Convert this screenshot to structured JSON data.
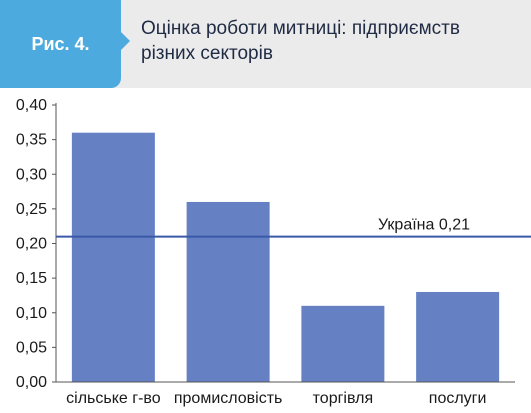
{
  "header": {
    "figure_label": "Рис. 4.",
    "title": "Оцінка роботи митниці: підприємств\nрізних секторів"
  },
  "colors": {
    "badge": "#4daadf",
    "header_bg": "#ebebeb",
    "bar": "#6680c4",
    "reference_line": "#3a5aa8"
  },
  "chart_data": {
    "type": "bar",
    "categories": [
      "сільське г-во",
      "промисловість",
      "торгівля",
      "послуги"
    ],
    "values": [
      0.36,
      0.26,
      0.11,
      0.13
    ],
    "ylim": [
      0,
      0.4
    ],
    "yticks": [
      "0,00",
      "0,05",
      "0,10",
      "0,15",
      "0,20",
      "0,25",
      "0,30",
      "0,35",
      "0,40"
    ],
    "ytick_values": [
      0,
      0.05,
      0.1,
      0.15,
      0.2,
      0.25,
      0.3,
      0.35,
      0.4
    ],
    "grid": false,
    "reference_line": {
      "value": 0.21,
      "label": "Україна 0,21"
    }
  }
}
